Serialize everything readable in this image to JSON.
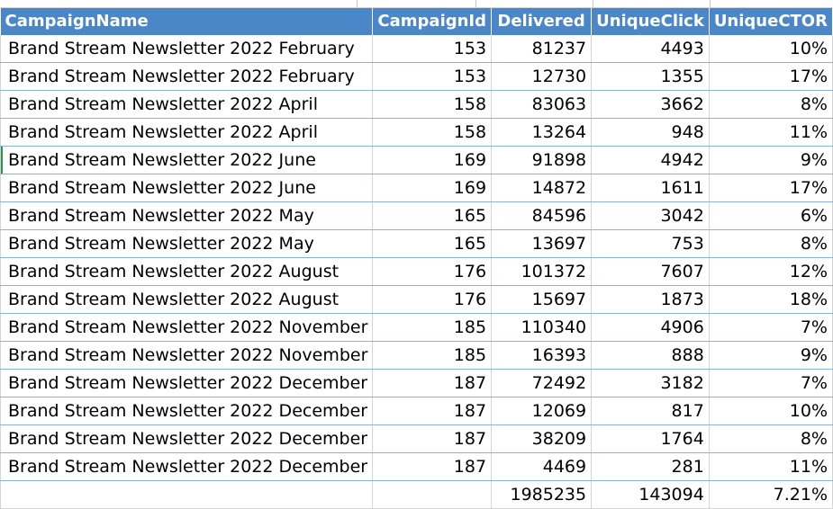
{
  "sheet": {
    "headers": [
      "CampaignName",
      "CampaignId",
      "Delivered",
      "UniqueClick",
      "UniqueCTOR"
    ],
    "rows": [
      [
        "Brand Stream Newsletter 2022 February",
        "153",
        "81237",
        "4493",
        "10%"
      ],
      [
        "Brand Stream Newsletter 2022 February",
        "153",
        "12730",
        "1355",
        "17%"
      ],
      [
        "Brand Stream Newsletter 2022 April",
        "158",
        "83063",
        "3662",
        "8%"
      ],
      [
        "Brand Stream Newsletter 2022 April",
        "158",
        "13264",
        "948",
        "11%"
      ],
      [
        "Brand Stream Newsletter 2022 June",
        "169",
        "91898",
        "4942",
        "9%"
      ],
      [
        "Brand Stream Newsletter 2022 June",
        "169",
        "14872",
        "1611",
        "17%"
      ],
      [
        "Brand Stream Newsletter 2022 May",
        "165",
        "84596",
        "3042",
        "6%"
      ],
      [
        "Brand Stream Newsletter 2022 May",
        "165",
        "13697",
        "753",
        "8%"
      ],
      [
        "Brand Stream Newsletter 2022 August",
        "176",
        "101372",
        "7607",
        "12%"
      ],
      [
        "Brand Stream Newsletter 2022 August",
        "176",
        "15697",
        "1873",
        "18%"
      ],
      [
        "Brand Stream Newsletter 2022 November",
        "185",
        "110340",
        "4906",
        "7%"
      ],
      [
        "Brand Stream Newsletter 2022 November",
        "185",
        "16393",
        "888",
        "9%"
      ],
      [
        "Brand Stream Newsletter 2022 December",
        "187",
        "72492",
        "3182",
        "7%"
      ],
      [
        "Brand Stream Newsletter 2022 December",
        "187",
        "12069",
        "817",
        "10%"
      ],
      [
        "Brand Stream Newsletter 2022 December",
        "187",
        "38209",
        "1764",
        "8%"
      ],
      [
        "Brand Stream Newsletter 2022 December",
        "187",
        "4469",
        "281",
        "11%"
      ]
    ],
    "totals": [
      "",
      "",
      "1985235",
      "143094",
      "7.21%"
    ]
  },
  "colors": {
    "header_bg": "#4a86c8",
    "header_text": "#ffffff",
    "row_divider": "#8fb0d8",
    "grid": "#d4d4d4",
    "selected_row_marker": "#2f8f4e"
  }
}
